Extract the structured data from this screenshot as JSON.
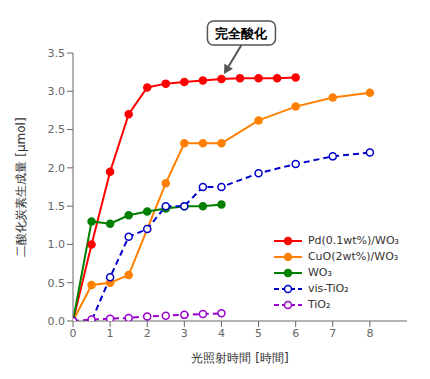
{
  "chart_data": {
    "type": "line",
    "x_label": "光照射時間 [時間]",
    "y_label": "二酸化炭素生成量 [μmol]",
    "xlim": [
      0,
      9
    ],
    "ylim": [
      0,
      3.5
    ],
    "xticks": [
      0,
      1,
      2,
      3,
      4,
      5,
      6,
      7,
      8
    ],
    "yticks": [
      {
        "value": 0,
        "label": "0.0"
      },
      0.5,
      {
        "value": 1.0,
        "label": "1.0"
      },
      1.5,
      {
        "value": 2.0,
        "label": "2.0"
      },
      2.5,
      {
        "value": 3.0,
        "label": "3.0"
      },
      3.5
    ],
    "grid": false,
    "legend": "lower right",
    "series": [
      {
        "name": "Pd(0.1wt%)/WO₃",
        "color": "#ff0000",
        "line_style": "solid",
        "marker": "circle",
        "x": [
          0,
          0.5,
          1.0,
          1.5,
          2.0,
          2.5,
          3.0,
          3.5,
          4.0,
          4.5,
          5.0,
          5.5,
          6.0
        ],
        "values": [
          0,
          1.0,
          1.95,
          2.7,
          3.05,
          3.1,
          3.12,
          3.14,
          3.16,
          3.17,
          3.17,
          3.17,
          3.18
        ]
      },
      {
        "name": "CuO(2wt%)/WO₃",
        "color": "#ff8000",
        "line_style": "solid",
        "marker": "circle",
        "x": [
          0,
          0.5,
          1.0,
          1.5,
          2.0,
          2.5,
          3.0,
          3.5,
          4.0,
          5.0,
          6.0,
          7.0,
          8.0
        ],
        "values": [
          0,
          0.47,
          0.5,
          0.6,
          1.2,
          1.8,
          2.32,
          2.32,
          2.32,
          2.62,
          2.8,
          2.92,
          2.98
        ]
      },
      {
        "name": "WO₃",
        "color": "#008000",
        "line_style": "solid",
        "marker": "circle",
        "x": [
          0,
          0.5,
          1.0,
          1.5,
          2.0,
          2.5,
          3.0,
          3.5,
          4.0
        ],
        "values": [
          0,
          1.3,
          1.27,
          1.38,
          1.43,
          1.47,
          1.5,
          1.5,
          1.52
        ]
      },
      {
        "name": "vis-TiO₂",
        "color": "#0000cc",
        "line_style": "dashed",
        "marker": "open_circle",
        "x": [
          0,
          0.5,
          1.0,
          1.5,
          2.0,
          2.5,
          3.0,
          3.5,
          4.0,
          5.0,
          6.0,
          7.0,
          8.0
        ],
        "values": [
          0,
          0.0,
          0.57,
          1.1,
          1.2,
          1.5,
          1.5,
          1.75,
          1.75,
          1.93,
          2.05,
          2.15,
          2.2
        ]
      },
      {
        "name": "TiO₂",
        "color": "#9900cc",
        "line_style": "dashed",
        "marker": "open_circle",
        "x": [
          0,
          0.5,
          1.0,
          1.5,
          2.0,
          2.5,
          3.0,
          3.5,
          4.0
        ],
        "values": [
          0,
          0.02,
          0.03,
          0.04,
          0.06,
          0.07,
          0.08,
          0.09,
          0.1
        ]
      }
    ],
    "annotations": [
      {
        "text": "完全酸化",
        "x": 4.0,
        "y": 3.17
      }
    ]
  }
}
